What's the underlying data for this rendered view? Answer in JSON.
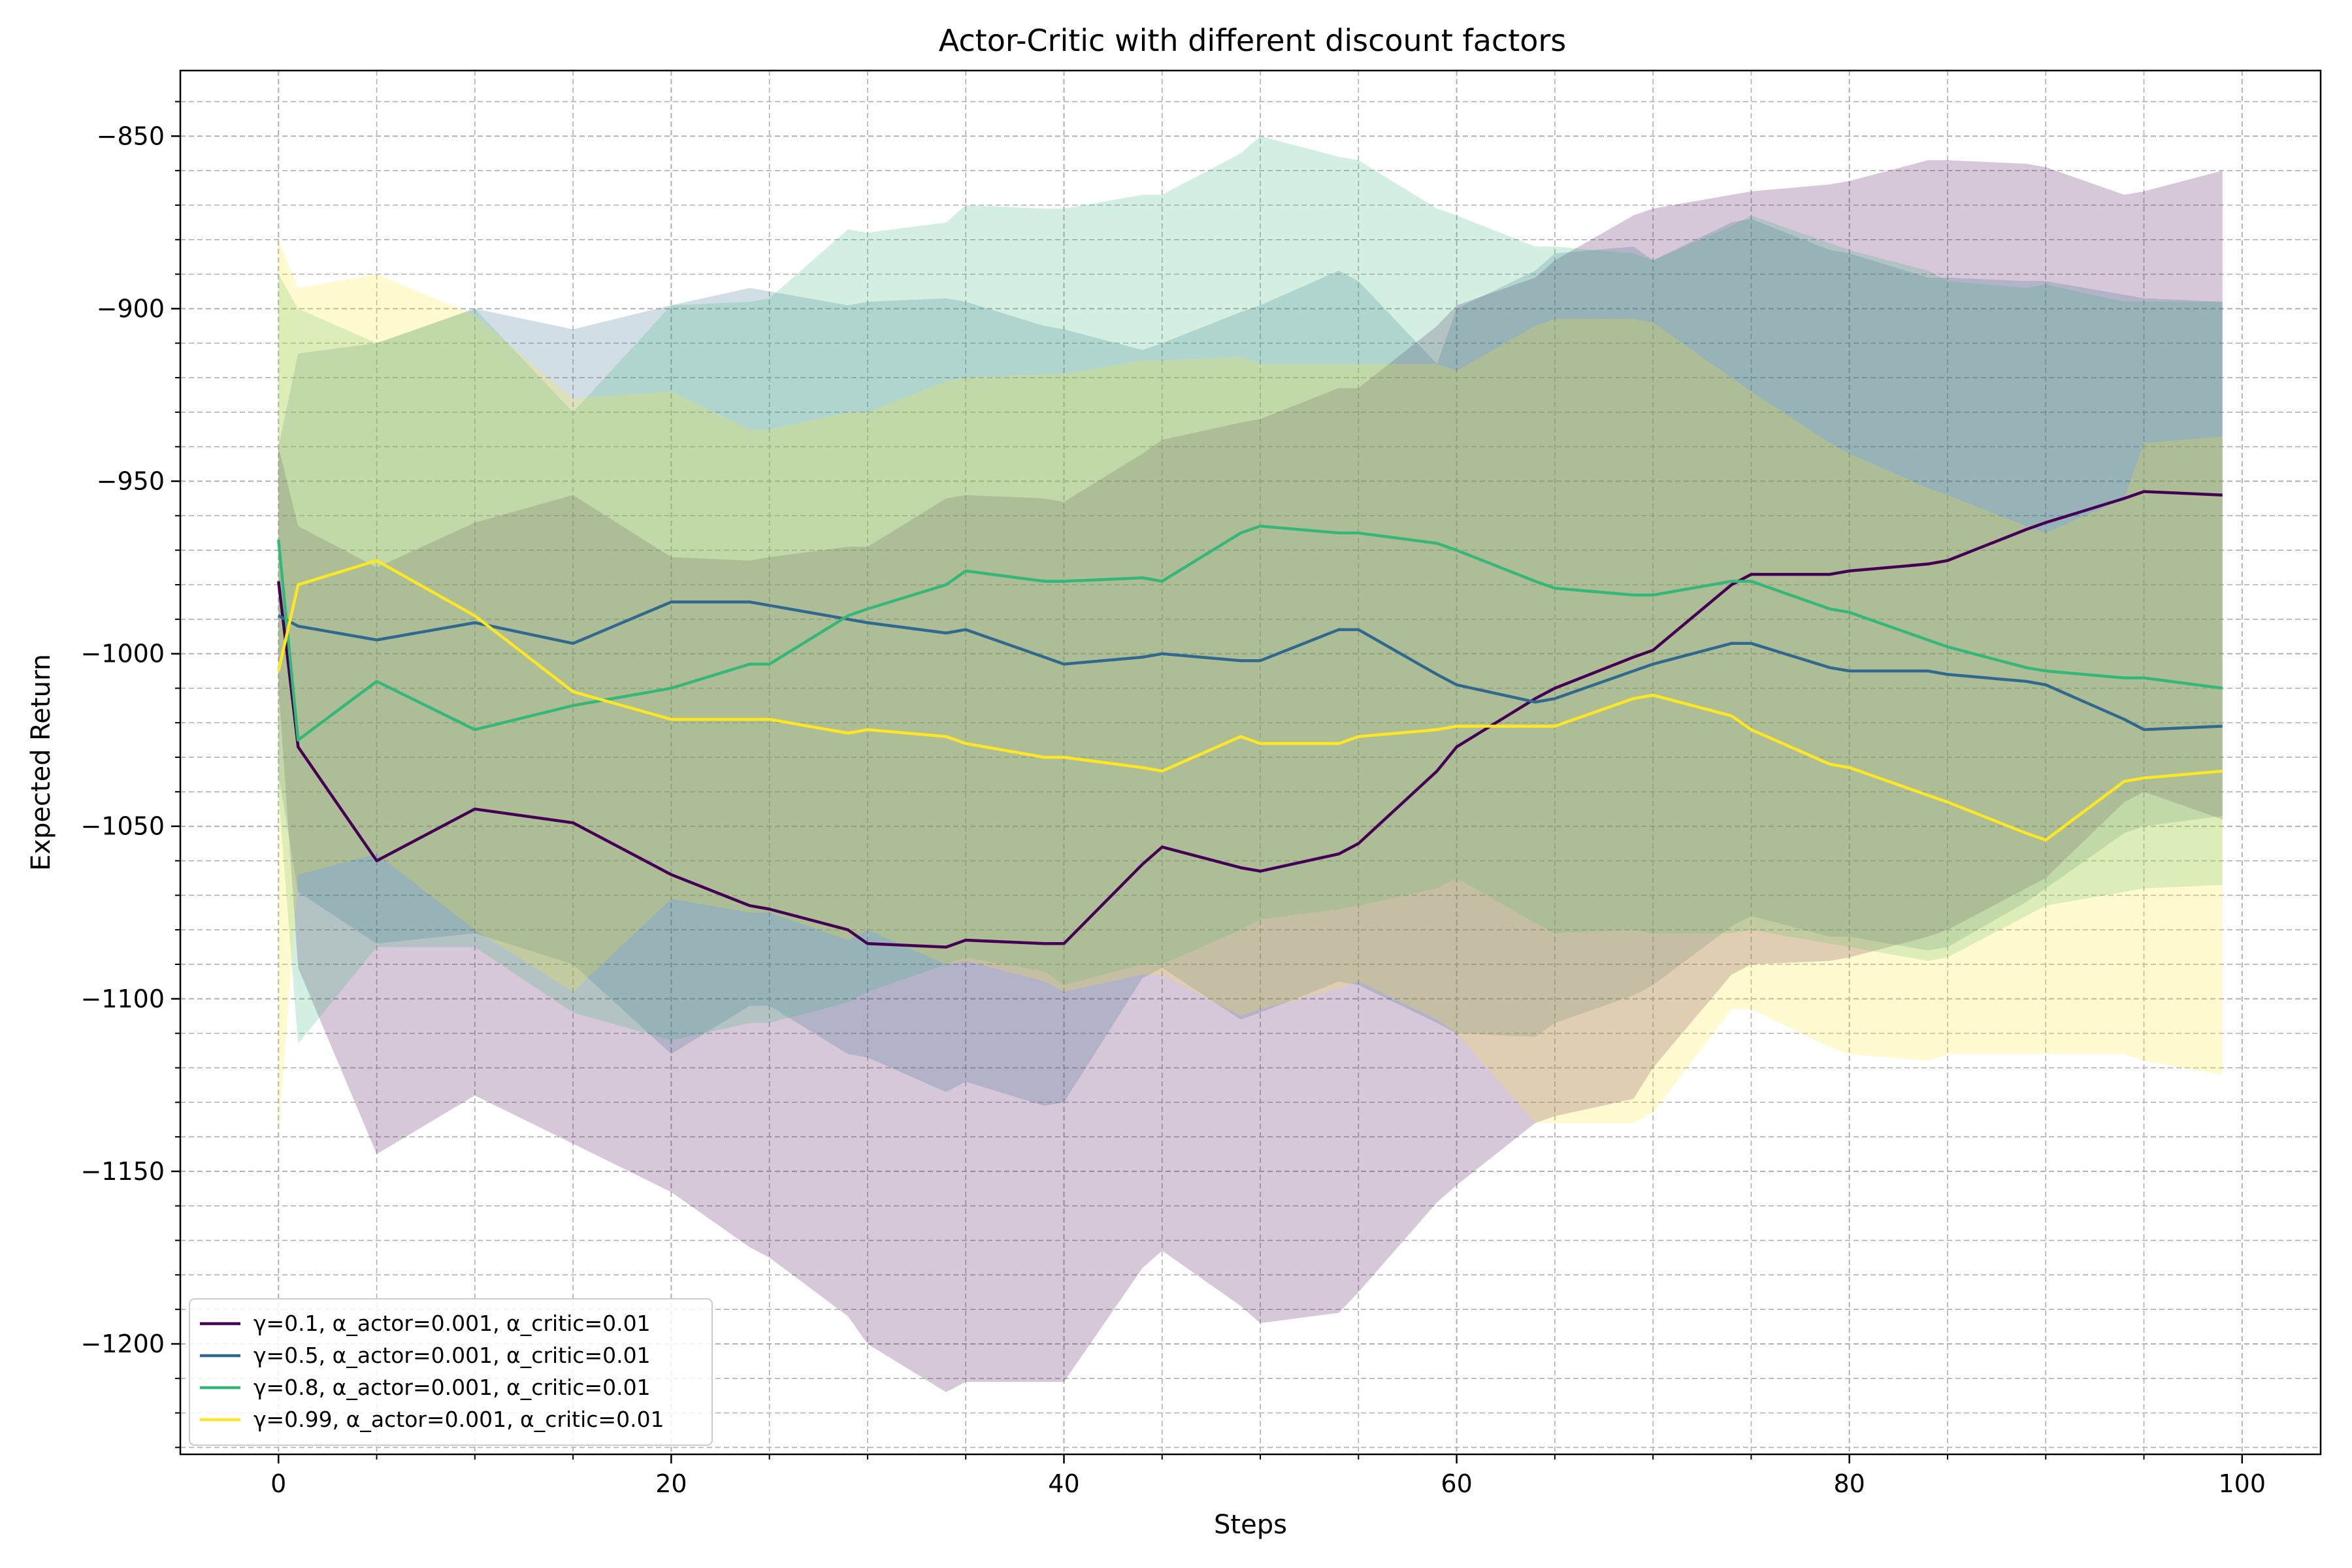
{
  "chart_data": {
    "type": "line",
    "title": "Actor-Critic with different discount factors",
    "xlabel": "Steps",
    "ylabel": "Expected Return",
    "xlim": [
      -5,
      104
    ],
    "ylim": [
      -1232,
      -831
    ],
    "xticks": [
      0,
      20,
      40,
      60,
      80,
      100
    ],
    "yticks": [
      -850,
      -900,
      -950,
      -1000,
      -1050,
      -1100,
      -1150,
      -1200
    ],
    "xtick_labels": [
      "0",
      "20",
      "40",
      "60",
      "80",
      "100"
    ],
    "ytick_labels": [
      "−850",
      "−900",
      "−950",
      "−1000",
      "−1050",
      "−1100",
      "−1150",
      "−1200"
    ],
    "grid": true,
    "minor_grid": true,
    "legend_position": "lower-left",
    "x": [
      0,
      1,
      5,
      10,
      15,
      20,
      24,
      25,
      29,
      30,
      34,
      35,
      39,
      40,
      44,
      45,
      49,
      50,
      54,
      55,
      59,
      60,
      64,
      65,
      69,
      70,
      74,
      75,
      79,
      80,
      84,
      85,
      89,
      90,
      94,
      95,
      99
    ],
    "series": [
      {
        "name": "γ=0.1, α_actor=0.001, α_critic=0.01",
        "color": "#440154",
        "mean": [
          -979,
          -1027,
          -1060,
          -1045,
          -1049,
          -1064,
          -1073,
          -1074,
          -1080,
          -1084,
          -1085,
          -1083,
          -1084,
          -1084,
          -1061,
          -1056,
          -1062,
          -1063,
          -1058,
          -1055,
          -1034,
          -1027,
          -1013,
          -1010,
          -1001,
          -999,
          -980,
          -977,
          -977,
          -976,
          -974,
          -973,
          -964,
          -962,
          -955,
          -953,
          -954
        ],
        "upper": [
          -940,
          -963,
          -975,
          -962,
          -954,
          -972,
          -973,
          -972,
          -969,
          -969,
          -955,
          -954,
          -955,
          -956,
          -942,
          -938,
          -933,
          -932,
          -923,
          -923,
          -905,
          -899,
          -891,
          -886,
          -873,
          -871,
          -867,
          -866,
          -864,
          -863,
          -857,
          -857,
          -858,
          -859,
          -867,
          -866,
          -860
        ],
        "lower": [
          -1010,
          -1091,
          -1145,
          -1128,
          -1142,
          -1156,
          -1172,
          -1175,
          -1192,
          -1200,
          -1214,
          -1211,
          -1211,
          -1211,
          -1178,
          -1173,
          -1189,
          -1194,
          -1191,
          -1185,
          -1159,
          -1154,
          -1136,
          -1134,
          -1129,
          -1120,
          -1093,
          -1090,
          -1089,
          -1088,
          -1082,
          -1080,
          -1068,
          -1065,
          -1043,
          -1040,
          -1048
        ]
      },
      {
        "name": "γ=0.5, α_actor=0.001, α_critic=0.01",
        "color": "#31688e",
        "mean": [
          -989,
          -992,
          -996,
          -991,
          -997,
          -985,
          -985,
          -986,
          -990,
          -991,
          -994,
          -993,
          -1001,
          -1003,
          -1001,
          -1000,
          -1002,
          -1002,
          -993,
          -993,
          -1006,
          -1009,
          -1014,
          -1013,
          -1005,
          -1003,
          -997,
          -997,
          -1004,
          -1005,
          -1005,
          -1006,
          -1008,
          -1009,
          -1019,
          -1022,
          -1021
        ],
        "upper": [
          -940,
          -913,
          -910,
          -900,
          -906,
          -899,
          -894,
          -895,
          -899,
          -898,
          -897,
          -898,
          -905,
          -906,
          -912,
          -910,
          -901,
          -899,
          -889,
          -892,
          -916,
          -900,
          -889,
          -884,
          -882,
          -886,
          -875,
          -874,
          -883,
          -884,
          -891,
          -891,
          -892,
          -892,
          -896,
          -897,
          -898
        ],
        "lower": [
          -1035,
          -1069,
          -1084,
          -1081,
          -1090,
          -1116,
          -1102,
          -1102,
          -1116,
          -1117,
          -1127,
          -1124,
          -1131,
          -1130,
          -1094,
          -1091,
          -1106,
          -1104,
          -1095,
          -1096,
          -1107,
          -1110,
          -1111,
          -1107,
          -1099,
          -1096,
          -1079,
          -1076,
          -1082,
          -1082,
          -1086,
          -1085,
          -1072,
          -1068,
          -1052,
          -1050,
          -1047
        ]
      },
      {
        "name": "γ=0.8, α_actor=0.001, α_critic=0.01",
        "color": "#35b779",
        "mean": [
          -967,
          -1025,
          -1008,
          -1022,
          -1015,
          -1010,
          -1003,
          -1003,
          -989,
          -987,
          -980,
          -976,
          -979,
          -979,
          -978,
          -979,
          -965,
          -963,
          -965,
          -965,
          -968,
          -970,
          -979,
          -981,
          -983,
          -983,
          -979,
          -979,
          -987,
          -988,
          -996,
          -998,
          -1004,
          -1005,
          -1007,
          -1007,
          -1010
        ],
        "upper": [
          -890,
          -900,
          -910,
          -900,
          -930,
          -899,
          -898,
          -897,
          -877,
          -878,
          -875,
          -870,
          -871,
          -871,
          -867,
          -867,
          -855,
          -850,
          -856,
          -857,
          -871,
          -873,
          -882,
          -882,
          -884,
          -886,
          -876,
          -873,
          -881,
          -883,
          -889,
          -892,
          -894,
          -893,
          -898,
          -898,
          -898
        ],
        "lower": [
          -1041,
          -1113,
          -1085,
          -1085,
          -1104,
          -1112,
          -1107,
          -1107,
          -1101,
          -1098,
          -1090,
          -1088,
          -1092,
          -1096,
          -1090,
          -1090,
          -1080,
          -1077,
          -1074,
          -1073,
          -1068,
          -1065,
          -1078,
          -1081,
          -1080,
          -1081,
          -1081,
          -1080,
          -1084,
          -1085,
          -1089,
          -1088,
          -1076,
          -1073,
          -1069,
          -1068,
          -1067
        ]
      },
      {
        "name": "γ=0.99, α_actor=0.001, α_critic=0.01",
        "color": "#fde725",
        "mean": [
          -1005,
          -980,
          -973,
          -989,
          -1011,
          -1019,
          -1019,
          -1019,
          -1023,
          -1022,
          -1024,
          -1026,
          -1030,
          -1030,
          -1033,
          -1034,
          -1024,
          -1026,
          -1026,
          -1024,
          -1022,
          -1021,
          -1021,
          -1021,
          -1013,
          -1012,
          -1018,
          -1022,
          -1032,
          -1033,
          -1041,
          -1043,
          -1052,
          -1054,
          -1037,
          -1036,
          -1034
        ],
        "upper": [
          -880,
          -894,
          -890,
          -902,
          -926,
          -924,
          -935,
          -935,
          -930,
          -930,
          -921,
          -920,
          -919,
          -919,
          -915,
          -915,
          -914,
          -916,
          -916,
          -916,
          -916,
          -918,
          -905,
          -903,
          -903,
          -904,
          -920,
          -924,
          -939,
          -942,
          -952,
          -954,
          -963,
          -965,
          -955,
          -939,
          -937
        ],
        "lower": [
          -1140,
          -1064,
          -1058,
          -1080,
          -1098,
          -1071,
          -1075,
          -1075,
          -1083,
          -1080,
          -1090,
          -1089,
          -1095,
          -1098,
          -1093,
          -1093,
          -1105,
          -1103,
          -1097,
          -1095,
          -1106,
          -1110,
          -1136,
          -1136,
          -1136,
          -1133,
          -1103,
          -1103,
          -1114,
          -1116,
          -1118,
          -1116,
          -1116,
          -1116,
          -1116,
          -1118,
          -1122
        ]
      }
    ],
    "band_opacity": 0.22
  }
}
